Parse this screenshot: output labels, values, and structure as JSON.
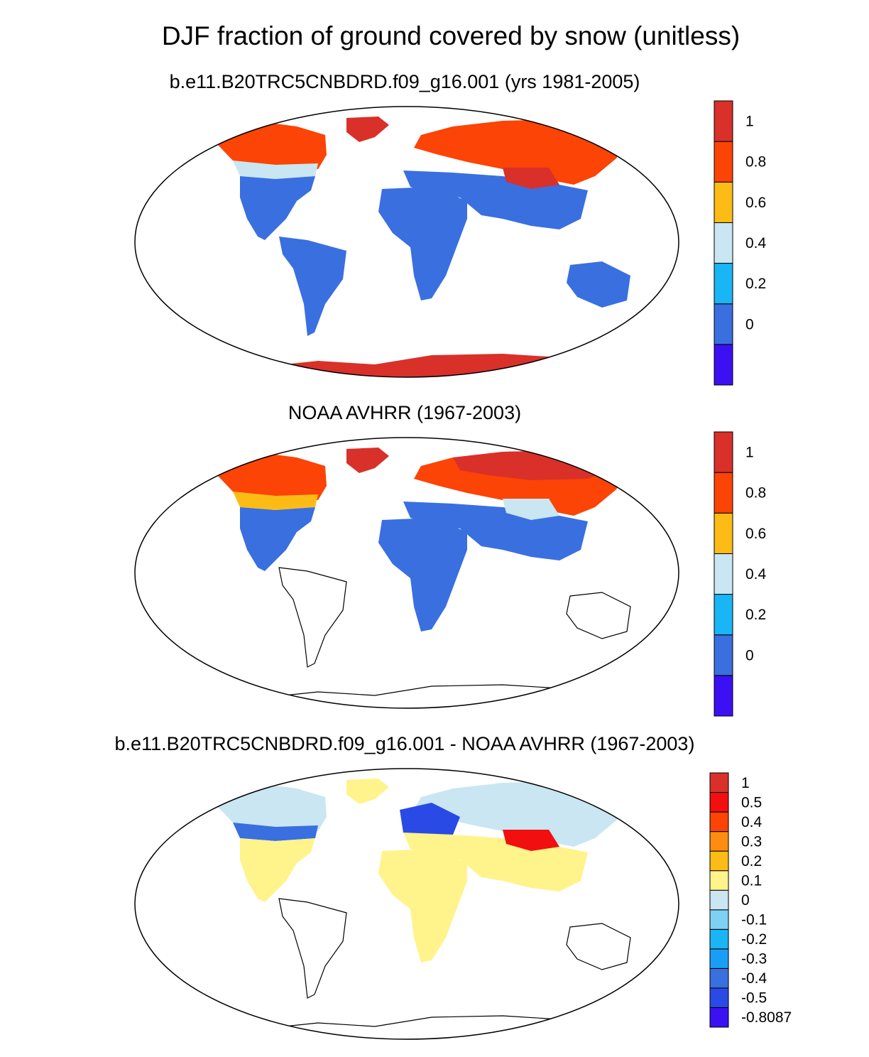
{
  "main_title": "DJF fraction of ground covered by snow (unitless)",
  "panels": [
    {
      "id": "model",
      "subtitle": "b.e11.B20TRC5CNBDRD.f09_g16.001 (yrs 1981-2005)",
      "colorbar": {
        "colors": [
          "#3b10f3",
          "#3a6fe0",
          "#1ab5f5",
          "#c9e6f2",
          "#fdbc15",
          "#fb4405",
          "#d9302a"
        ],
        "labels": [
          "0",
          "0.2",
          "0.4",
          "0.6",
          "0.8",
          "1"
        ]
      },
      "regions": {
        "north_america_snow": "#fb4405",
        "north_america_transition": "#c9e6f2",
        "north_america_south": "#3a6fe0",
        "greenland": "#d9302a",
        "eurasia_snow": "#fb4405",
        "eurasia_south": "#3a6fe0",
        "tibet": "#d9302a",
        "africa": "#3a6fe0",
        "south_america": "#3a6fe0",
        "australia": "#3a6fe0",
        "antarctica": "#d9302a"
      }
    },
    {
      "id": "obs",
      "subtitle": "NOAA AVHRR (1967-2003)",
      "colorbar": {
        "colors": [
          "#3b10f3",
          "#3a6fe0",
          "#1ab5f5",
          "#c9e6f2",
          "#fdbc15",
          "#fb4405",
          "#d9302a"
        ],
        "labels": [
          "0",
          "0.2",
          "0.4",
          "0.6",
          "0.8",
          "1"
        ]
      },
      "regions": {
        "north_america_snow": "#fb4405",
        "north_america_transition": "#fdbc15",
        "north_america_south": "#3a6fe0",
        "greenland": "#d9302a",
        "eurasia_snow": "#fb4405",
        "eurasia_north": "#d9302a",
        "eurasia_south": "#3a6fe0",
        "tibet": "#c9e6f2",
        "africa": "#3a6fe0",
        "south_america": "none",
        "australia": "none",
        "antarctica": "none"
      }
    },
    {
      "id": "diff",
      "subtitle": "b.e11.B20TRC5CNBDRD.f09_g16.001 - NOAA AVHRR (1967-2003)",
      "colorbar": {
        "colors": [
          "#3b10f3",
          "#2a4ae6",
          "#3a6fe0",
          "#1a9ef5",
          "#1ab5f5",
          "#7fd0f5",
          "#c9e6f2",
          "#fff38c",
          "#fdbc15",
          "#fd8c10",
          "#fb4405",
          "#f20f0f",
          "#d9302a"
        ],
        "labels": [
          "-0.8087",
          "-0.5",
          "-0.4",
          "-0.3",
          "-0.2",
          "-0.1",
          "0",
          "0.1",
          "0.2",
          "0.3",
          "0.4",
          "0.5",
          "1"
        ]
      },
      "regions": {
        "north_america_snow": "#c9e6f2",
        "north_america_transition": "#3a6fe0",
        "north_america_south": "#fff38c",
        "greenland": "#fff38c",
        "eurasia_snow": "#c9e6f2",
        "europe": "#2a4ae6",
        "eurasia_south": "#fff38c",
        "tibet": "#f20f0f",
        "africa": "#fff38c",
        "south_america": "none",
        "australia": "none",
        "antarctica": "none"
      }
    }
  ]
}
